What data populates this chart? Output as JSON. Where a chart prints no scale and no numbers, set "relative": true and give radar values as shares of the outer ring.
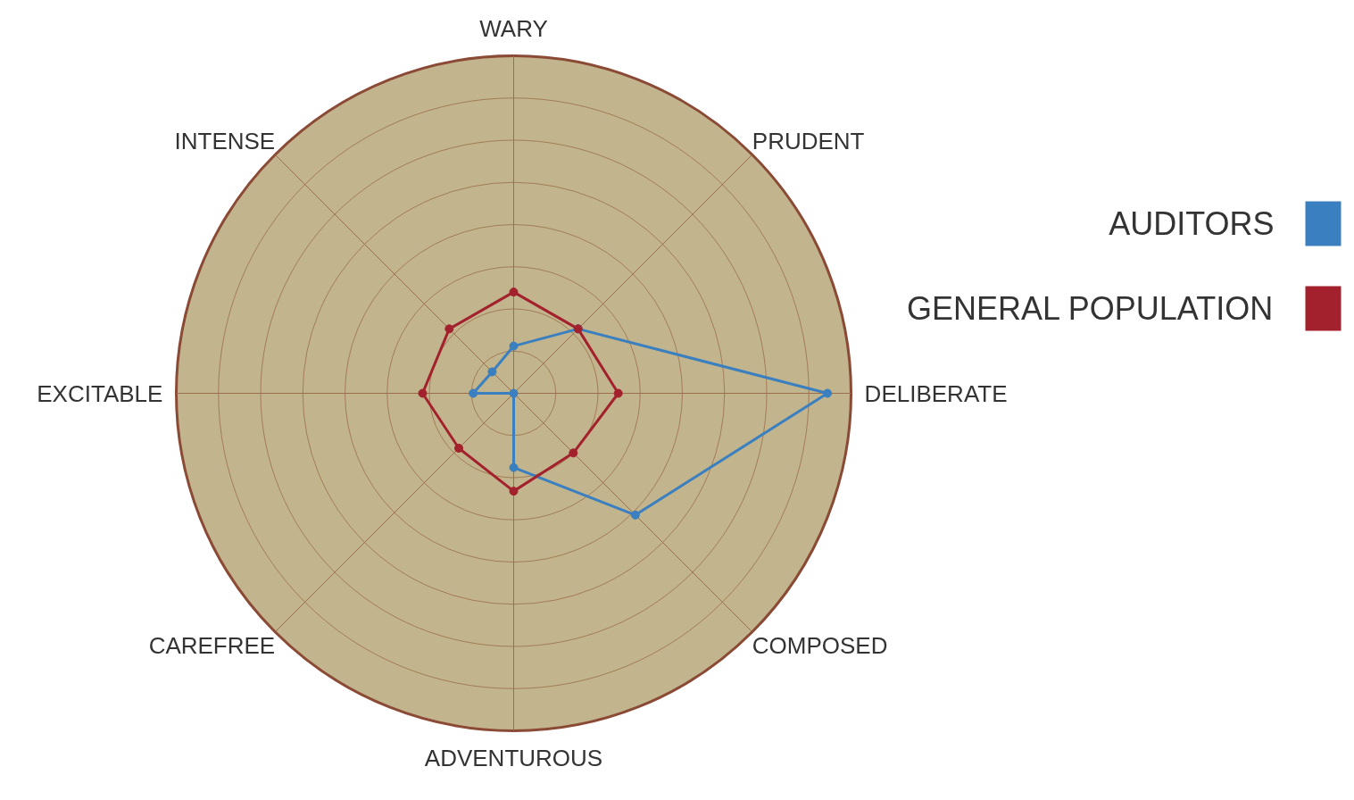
{
  "chart_data": {
    "type": "radar",
    "relative": true,
    "categories": [
      "WARY",
      "PRUDENT",
      "DELIBERATE",
      "COMPOSED",
      "ADVENTUROUS",
      "CAREFREE",
      "EXCITABLE",
      "INTENSE"
    ],
    "series": [
      {
        "name": "AUDITORS",
        "color": "#3a7fc0",
        "values": [
          0.14,
          0.27,
          0.93,
          0.51,
          0.22,
          0,
          0.12,
          0.09
        ]
      },
      {
        "name": "GENERAL POPULATION",
        "color": "#a3202d",
        "values": [
          0.3,
          0.27,
          0.31,
          0.25,
          0.29,
          0.23,
          0.27,
          0.27
        ]
      }
    ],
    "grid": true,
    "legend": "right",
    "marker": "circle"
  }
}
